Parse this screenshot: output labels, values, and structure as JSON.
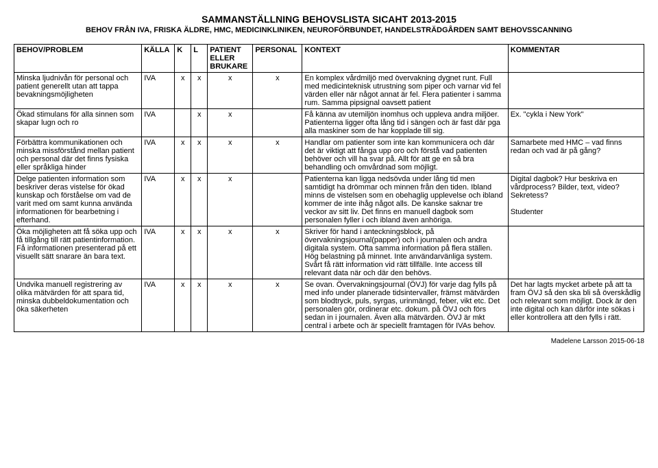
{
  "header": {
    "title": "SAMMANSTÄLLNING BEHOVSLISTA SICAHT 2013-2015",
    "subtitle": "BEHOV FRÅN IVA, FRISKA ÄLDRE, HMC, MEDICINKLINIKEN, NEUROFÖRBUNDET, HANDELSTRÄDGÅRDEN SAMT BEHOVSSCANNING"
  },
  "columns": {
    "behov": "BEHOV/PROBLEM",
    "kalla": "KÄLLA",
    "k": "K",
    "l": "L",
    "patient": "PATIENT ELLER BRUKARE",
    "personal": "PERSONAL",
    "kontext": "KONTEXT",
    "kommentar": "KOMMENTAR"
  },
  "rows": [
    {
      "behov": "Minska ljudnivån för personal och patient generellt utan att tappa bevakningsmöjligheten",
      "kalla": "IVA",
      "k": "x",
      "l": "x",
      "patient": "x",
      "personal": "x",
      "kontext": "En komplex vårdmiljö med övervakning dygnet runt. Full med medicinteknisk utrustning som piper och varnar vid fel värden eller när något annat är fel. Flera patienter i samma rum. Samma pipsignal oavsett patient",
      "kommentar": ""
    },
    {
      "behov": "Ökad stimulans för alla sinnen som skapar lugn och ro",
      "kalla": "IVA",
      "k": "",
      "l": "x",
      "patient": "x",
      "personal": "",
      "kontext": "Få känna av utemiljön inomhus och uppleva andra miljöer. Patienterna ligger ofta lång tid i sängen och är fast där pga alla maskiner som de har kopplade till sig.",
      "kommentar": "Ex. \"cykla i New York\""
    },
    {
      "behov": "Förbättra kommunikationen och minska missförstånd mellan patient och personal där det finns fysiska eller språkliga hinder",
      "kalla": "IVA",
      "k": "x",
      "l": "x",
      "patient": "x",
      "personal": "x",
      "kontext": "Handlar om patienter som inte kan kommunicera och där det är viktigt att fånga upp oro och förstå vad patienten behöver och vill ha svar på. Allt för att ge en så bra behandling och omvårdnad som möjligt.",
      "kommentar": "Samarbete med HMC – vad finns redan och vad är på gång?"
    },
    {
      "behov": "Delge patienten information som beskriver deras vistelse för ökad kunskap och förståelse om vad de varit med om samt kunna använda informationen för bearbetning i efterhand.",
      "kalla": "IVA",
      "k": "x",
      "l": "x",
      "patient": "x",
      "personal": "",
      "kontext": "Patienterna kan ligga nedsövda under lång tid men samtidigt ha drömmar och minnen från den tiden. Ibland minns de vistelsen som en obehaglig upplevelse och ibland kommer de inte ihåg något alls. De kanske saknar tre veckor av sitt liv. Det finns en manuell dagbok som personalen fyller i och ibland även anhöriga.",
      "kommentar": "Digital dagbok? Hur beskriva en vårdprocess? Bilder, text, video? Sekretess?\n\nStudenter"
    },
    {
      "behov": "Öka möjligheten att få söka upp och få tillgång till rätt patientinformation. Få informationen presenterad på ett visuellt sätt snarare än bara text.",
      "kalla": "IVA",
      "k": "x",
      "l": "x",
      "patient": "x",
      "personal": "x",
      "kontext": "Skriver för hand i anteckningsblock, på övervakningsjournal(papper) och i journalen och andra digitala system. Ofta samma information på flera ställen. Hög belastning på minnet. Inte användarvänliga system. Svårt få rätt information vid rätt tillfälle. Inte access till relevant data när och där den behövs.",
      "kommentar": ""
    },
    {
      "behov": "Undvika manuell registrering av olika mätvärden för att spara tid, minska dubbeldokumentation och öka säkerheten",
      "kalla": "IVA",
      "k": "x",
      "l": "x",
      "patient": "x",
      "personal": "x",
      "kontext": "Se ovan. Övervakningsjournal (ÖVJ) för varje dag fylls på med info under planerade tidsintervaller, främst mätvärden som blodtryck, puls, syrgas, urinmängd, feber, vikt etc. Det personalen gör, ordinerar etc. dokum. på ÖVJ och förs sedan in i journalen. Även alla mätvärden. ÖVJ är mkt central i arbete och är speciellt framtagen för IVAs behov.",
      "kommentar": "Det har lagts mycket arbete på att ta fram ÖVJ så den ska bli så överskådlig och relevant som möjligt. Dock är den inte digital och kan därför inte sökas i eller kontrollera att den fylls i rätt."
    }
  ],
  "footer": "Madelene Larsson 2015-06-18"
}
